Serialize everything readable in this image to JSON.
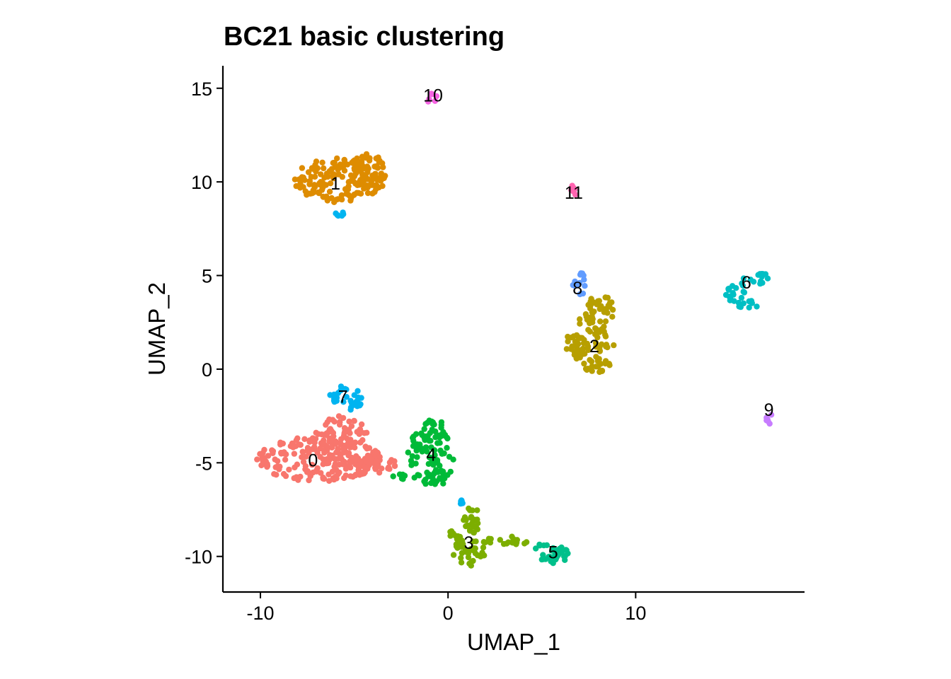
{
  "chart_data": {
    "type": "scatter",
    "title": "BC21 basic clustering",
    "xlabel": "UMAP_1",
    "ylabel": "UMAP_2",
    "xlim": [
      -12,
      19
    ],
    "ylim": [
      -11.9,
      16.2
    ],
    "xticks": [
      -10,
      0,
      10
    ],
    "xtick_labels": [
      "-10",
      "0",
      "10"
    ],
    "yticks": [
      15,
      10,
      5,
      0,
      -5,
      -10
    ],
    "ytick_labels": [
      "15",
      "10",
      "5",
      "0",
      "-5",
      "-10"
    ],
    "grid": false,
    "legend": "none",
    "clusters": [
      {
        "id": "0",
        "color": "#F8766D",
        "label_pos": [
          -7.2,
          -4.9
        ],
        "regions": [
          {
            "cx": -6.9,
            "cy": -4.8,
            "rx": 3.4,
            "ry": 1.2
          },
          {
            "cx": -5.7,
            "cy": -3.4,
            "rx": 1.4,
            "ry": 0.9
          },
          {
            "cx": -4.0,
            "cy": -5.1,
            "rx": 1.3,
            "ry": 0.7
          }
        ]
      },
      {
        "id": "1",
        "color": "#DE8C00",
        "label_pos": [
          -6.0,
          9.9
        ],
        "regions": [
          {
            "cx": -5.8,
            "cy": 10.1,
            "rx": 2.4,
            "ry": 1.2
          },
          {
            "cx": -4.3,
            "cy": 10.6,
            "rx": 1.0,
            "ry": 0.9
          }
        ]
      },
      {
        "id": "2",
        "color": "#B79F00",
        "label_pos": [
          7.8,
          1.2
        ],
        "regions": [
          {
            "cx": 7.8,
            "cy": 1.0,
            "rx": 1.1,
            "ry": 1.2
          },
          {
            "cx": 6.7,
            "cy": 1.4,
            "rx": 0.6,
            "ry": 0.5
          },
          {
            "cx": 8.1,
            "cy": 3.1,
            "rx": 0.7,
            "ry": 1.0
          },
          {
            "cx": 7.3,
            "cy": 2.6,
            "rx": 0.5,
            "ry": 0.4
          }
        ]
      },
      {
        "id": "3",
        "color": "#7CAE00",
        "label_pos": [
          1.1,
          -9.3
        ],
        "regions": [
          {
            "cx": 1.1,
            "cy": -9.8,
            "rx": 0.9,
            "ry": 0.7
          },
          {
            "cx": 1.3,
            "cy": -8.0,
            "rx": 0.5,
            "ry": 0.9
          },
          {
            "cx": 2.9,
            "cy": -9.2,
            "rx": 1.3,
            "ry": 0.3
          },
          {
            "cx": 0.3,
            "cy": -8.9,
            "rx": 0.5,
            "ry": 0.3
          }
        ]
      },
      {
        "id": "4",
        "color": "#00BA38",
        "label_pos": [
          -0.9,
          -4.6
        ],
        "regions": [
          {
            "cx": -1.5,
            "cy": -4.4,
            "rx": 0.7,
            "ry": 1.0
          },
          {
            "cx": -0.3,
            "cy": -4.6,
            "rx": 0.6,
            "ry": 1.3
          },
          {
            "cx": -0.8,
            "cy": -3.2,
            "rx": 0.7,
            "ry": 0.5
          },
          {
            "cx": -1.0,
            "cy": -5.9,
            "rx": 0.9,
            "ry": 0.4
          },
          {
            "cx": -2.5,
            "cy": -5.7,
            "rx": 0.5,
            "ry": 0.2
          }
        ]
      },
      {
        "id": "5",
        "color": "#00C08B",
        "label_pos": [
          5.6,
          -9.8
        ],
        "regions": [
          {
            "cx": 5.6,
            "cy": -9.8,
            "rx": 1.1,
            "ry": 0.6
          }
        ]
      },
      {
        "id": "6",
        "color": "#00BFC4",
        "label_pos": [
          15.9,
          4.6
        ],
        "regions": [
          {
            "cx": 16.6,
            "cy": 4.8,
            "rx": 0.9,
            "ry": 0.3
          },
          {
            "cx": 15.3,
            "cy": 4.1,
            "rx": 0.5,
            "ry": 0.7
          },
          {
            "cx": 16.0,
            "cy": 3.4,
            "rx": 0.5,
            "ry": 0.3
          }
        ]
      },
      {
        "id": "7",
        "color": "#00B4F0",
        "label_pos": [
          -5.6,
          -1.5
        ],
        "regions": [
          {
            "cx": -5.4,
            "cy": -1.5,
            "rx": 0.9,
            "ry": 0.7
          },
          {
            "cx": -5.8,
            "cy": 8.3,
            "rx": 0.3,
            "ry": 0.2
          },
          {
            "cx": 0.7,
            "cy": -7.1,
            "rx": 0.1,
            "ry": 0.1
          }
        ]
      },
      {
        "id": "8",
        "color": "#619CFF",
        "label_pos": [
          6.9,
          4.3
        ],
        "regions": [
          {
            "cx": 7.0,
            "cy": 4.5,
            "rx": 0.35,
            "ry": 0.8
          }
        ]
      },
      {
        "id": "9",
        "color": "#C77CFF",
        "label_pos": [
          17.1,
          -2.2
        ],
        "regions": [
          {
            "cx": 17.1,
            "cy": -2.6,
            "rx": 0.15,
            "ry": 0.7
          }
        ]
      },
      {
        "id": "10",
        "color": "#F564E3",
        "label_pos": [
          -0.8,
          14.6
        ],
        "regions": [
          {
            "cx": -0.9,
            "cy": 14.5,
            "rx": 0.35,
            "ry": 0.3
          }
        ]
      },
      {
        "id": "11",
        "color": "#FF64B0",
        "label_pos": [
          6.7,
          9.4
        ],
        "regions": [
          {
            "cx": 6.7,
            "cy": 9.6,
            "rx": 0.2,
            "ry": 0.35
          }
        ]
      }
    ]
  }
}
